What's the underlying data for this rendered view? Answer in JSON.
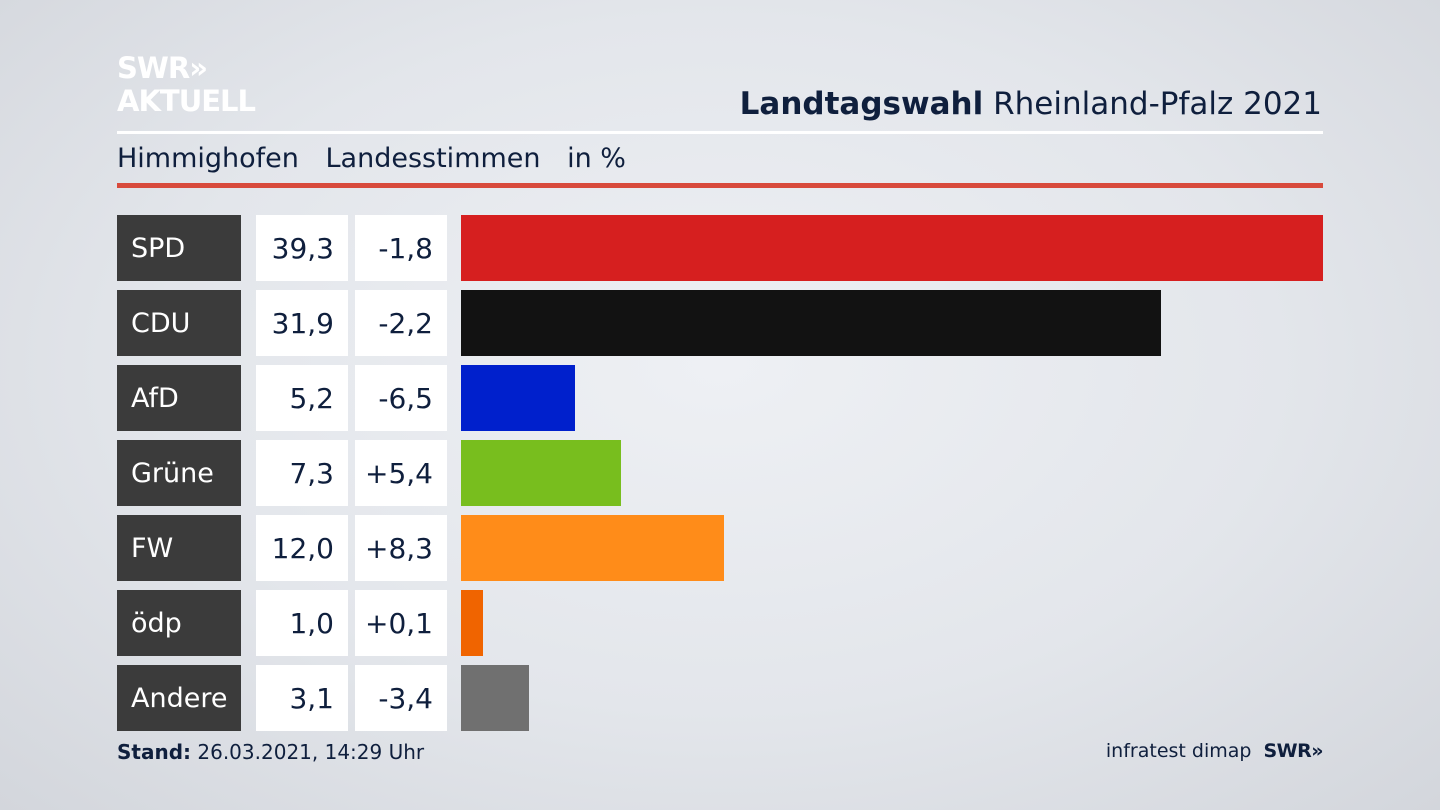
{
  "logo": {
    "line1": "SWR»",
    "line2": "AKTUELL"
  },
  "header": {
    "title_bold": "Landtagswahl",
    "title_rest": "Rheinland-Pfalz 2021"
  },
  "subtitle": {
    "place": "Himmighofen",
    "measure": "Landesstimmen",
    "unit": "in %"
  },
  "footer": {
    "stand_label": "Stand:",
    "stand_value": "26.03.2021, 14:29 Uhr",
    "source": "infratest dimap",
    "brand": "SWR»"
  },
  "chart_data": {
    "type": "bar",
    "orientation": "horizontal",
    "xlim": [
      0,
      39.3
    ],
    "rows": [
      {
        "party": "SPD",
        "value": 39.3,
        "value_label": "39,3",
        "diff_label": "-1,8",
        "color": "#d61f1f"
      },
      {
        "party": "CDU",
        "value": 31.9,
        "value_label": "31,9",
        "diff_label": "-2,2",
        "color": "#121212"
      },
      {
        "party": "AfD",
        "value": 5.2,
        "value_label": "5,2",
        "diff_label": "-6,5",
        "color": "#0020cc"
      },
      {
        "party": "Grüne",
        "value": 7.3,
        "value_label": "7,3",
        "diff_label": "+5,4",
        "color": "#78be1e"
      },
      {
        "party": "FW",
        "value": 12.0,
        "value_label": "12,0",
        "diff_label": "+8,3",
        "color": "#ff8c19"
      },
      {
        "party": "ödp",
        "value": 1.0,
        "value_label": "1,0",
        "diff_label": "+0,1",
        "color": "#f06400"
      },
      {
        "party": "Andere",
        "value": 3.1,
        "value_label": "3,1",
        "diff_label": "-3,4",
        "color": "#707070"
      }
    ]
  }
}
